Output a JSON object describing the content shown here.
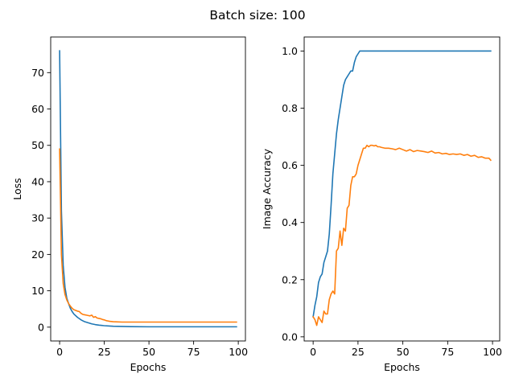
{
  "suptitle": "Batch size: 100",
  "chart_data": [
    {
      "type": "line",
      "xlabel": "Epochs",
      "ylabel": "Loss",
      "xlim": [
        -5,
        104
      ],
      "ylim": [
        -3.8,
        79.8
      ],
      "xticks": [
        0,
        25,
        50,
        75,
        100
      ],
      "xtick_labels": [
        "0",
        "25",
        "50",
        "75",
        "100"
      ],
      "yticks": [
        0,
        10,
        20,
        30,
        40,
        50,
        60,
        70
      ],
      "ytick_labels": [
        "0",
        "10",
        "20",
        "30",
        "40",
        "50",
        "60",
        "70"
      ],
      "grid": false,
      "series": [
        {
          "color": "#1f77b4",
          "x": [
            0,
            1,
            2,
            3,
            4,
            5,
            6,
            7,
            8,
            10,
            12,
            14,
            16,
            18,
            20,
            22,
            25,
            28,
            30,
            35,
            40,
            50,
            60,
            70,
            80,
            90,
            99
          ],
          "y": [
            76,
            32,
            17,
            11,
            8,
            6.5,
            5.2,
            4.3,
            3.6,
            2.7,
            2.0,
            1.5,
            1.2,
            0.9,
            0.7,
            0.55,
            0.4,
            0.3,
            0.25,
            0.2,
            0.15,
            0.1,
            0.1,
            0.1,
            0.1,
            0.1,
            0.1
          ]
        },
        {
          "color": "#ff7f0e",
          "x": [
            0,
            1,
            2,
            3,
            4,
            5,
            6,
            7,
            8,
            9,
            10,
            11,
            12,
            13,
            14,
            15,
            16,
            17,
            18,
            19,
            20,
            21,
            22,
            23,
            24,
            25,
            26,
            27,
            28,
            30,
            35,
            40,
            50,
            60,
            70,
            80,
            90,
            99
          ],
          "y": [
            49,
            20,
            12,
            9,
            7.5,
            6.5,
            5.8,
            5.2,
            4.8,
            4.6,
            4.4,
            4.3,
            3.8,
            3.5,
            3.4,
            3.3,
            3.2,
            3.1,
            3.3,
            2.7,
            2.9,
            2.5,
            2.4,
            2.3,
            2.1,
            2.0,
            1.8,
            1.7,
            1.6,
            1.5,
            1.4,
            1.4,
            1.4,
            1.4,
            1.4,
            1.4,
            1.4,
            1.4
          ]
        }
      ]
    },
    {
      "type": "line",
      "xlabel": "Epochs",
      "ylabel": "Image Accuracy",
      "xlim": [
        -5,
        104
      ],
      "ylim": [
        -0.0145,
        1.0491
      ],
      "xticks": [
        0,
        25,
        50,
        75,
        100
      ],
      "xtick_labels": [
        "0",
        "25",
        "50",
        "75",
        "100"
      ],
      "yticks": [
        0.0,
        0.2,
        0.4,
        0.6,
        0.8,
        1.0
      ],
      "ytick_labels": [
        "0.0",
        "0.2",
        "0.4",
        "0.6",
        "0.8",
        "1.0"
      ],
      "grid": false,
      "series": [
        {
          "color": "#1f77b4",
          "x": [
            0,
            1,
            2,
            3,
            4,
            5,
            6,
            7,
            8,
            9,
            10,
            11,
            12,
            13,
            14,
            15,
            16,
            17,
            18,
            19,
            20,
            21,
            22,
            23,
            24,
            25,
            26,
            27,
            28,
            30,
            40,
            50,
            60,
            70,
            80,
            90,
            99
          ],
          "y": [
            0.07,
            0.11,
            0.14,
            0.19,
            0.21,
            0.22,
            0.26,
            0.28,
            0.3,
            0.36,
            0.46,
            0.57,
            0.64,
            0.71,
            0.76,
            0.8,
            0.84,
            0.88,
            0.9,
            0.91,
            0.92,
            0.93,
            0.93,
            0.96,
            0.98,
            0.99,
            1.0,
            1.0,
            1.0,
            1.0,
            1.0,
            1.0,
            1.0,
            1.0,
            1.0,
            1.0,
            1.0
          ]
        },
        {
          "color": "#ff7f0e",
          "x": [
            0,
            1,
            2,
            3,
            4,
            5,
            6,
            7,
            8,
            9,
            10,
            11,
            12,
            13,
            14,
            15,
            16,
            17,
            18,
            19,
            20,
            21,
            22,
            23,
            24,
            25,
            26,
            27,
            28,
            29,
            30,
            31,
            32,
            33,
            34,
            35,
            36,
            37,
            38,
            40,
            42,
            44,
            46,
            48,
            50,
            52,
            54,
            56,
            58,
            60,
            62,
            64,
            66,
            68,
            70,
            72,
            74,
            76,
            78,
            80,
            82,
            84,
            86,
            88,
            90,
            92,
            94,
            96,
            98,
            99
          ],
          "y": [
            0.07,
            0.06,
            0.04,
            0.07,
            0.06,
            0.05,
            0.09,
            0.08,
            0.08,
            0.13,
            0.15,
            0.16,
            0.15,
            0.3,
            0.31,
            0.37,
            0.32,
            0.38,
            0.37,
            0.45,
            0.46,
            0.53,
            0.56,
            0.56,
            0.57,
            0.6,
            0.62,
            0.64,
            0.66,
            0.66,
            0.67,
            0.665,
            0.67,
            0.67,
            0.668,
            0.67,
            0.665,
            0.665,
            0.663,
            0.66,
            0.66,
            0.658,
            0.655,
            0.66,
            0.655,
            0.65,
            0.655,
            0.648,
            0.652,
            0.65,
            0.648,
            0.645,
            0.65,
            0.643,
            0.645,
            0.64,
            0.642,
            0.638,
            0.64,
            0.638,
            0.64,
            0.635,
            0.638,
            0.632,
            0.635,
            0.628,
            0.63,
            0.625,
            0.625,
            0.618
          ]
        }
      ]
    }
  ]
}
